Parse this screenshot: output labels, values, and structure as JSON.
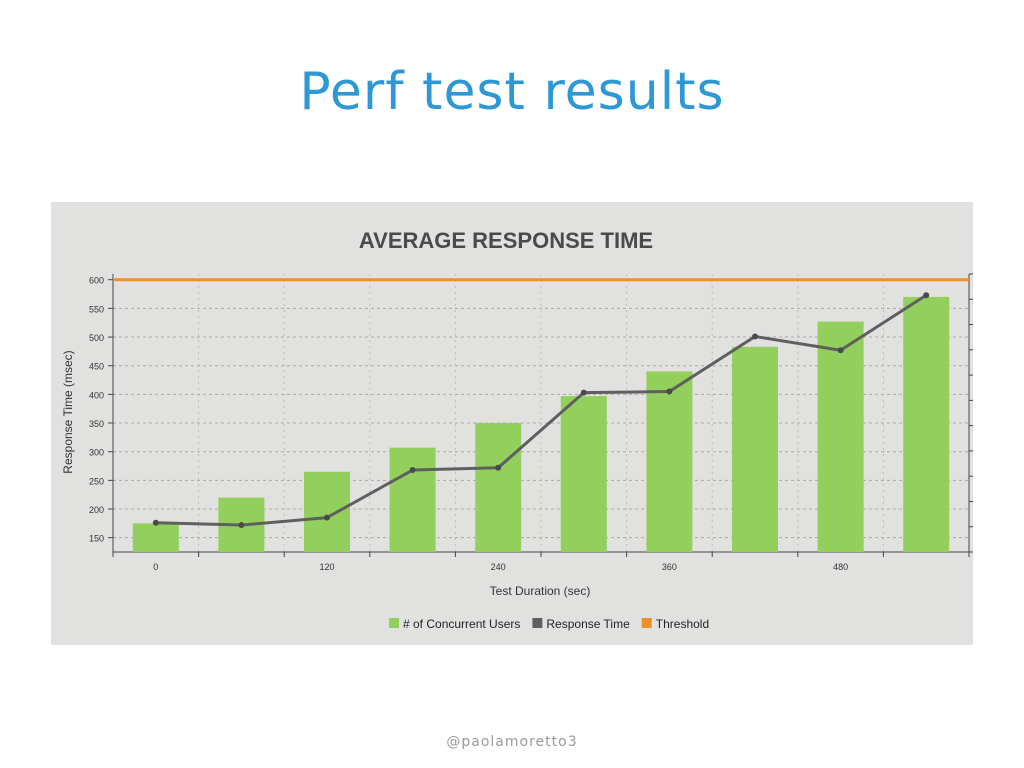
{
  "slide": {
    "title": "Perf test results",
    "footer": "@paolamoretto3"
  },
  "colors": {
    "title": "#2e98d6",
    "panel": "#e1e2e0",
    "bar": "#92cf5c",
    "line": "#5f5f5f",
    "threshold": "#ef8f2a"
  },
  "chart_data": {
    "type": "bar",
    "title": "AVERAGE RESPONSE TIME",
    "xlabel": "Test Duration (sec)",
    "ylabel": "Response Time (msec)",
    "ylim": [
      125,
      610
    ],
    "y_ticks": [
      150,
      200,
      250,
      300,
      350,
      400,
      450,
      500,
      550,
      600
    ],
    "x_tick_labels": [
      "0",
      "120",
      "240",
      "360",
      "480"
    ],
    "x_tick_positions": [
      0,
      2,
      4,
      6,
      8
    ],
    "grid": true,
    "legend_position": "bottom",
    "series": [
      {
        "name": "# of Concurrent Users",
        "kind": "bar",
        "color": "#92cf5c",
        "values": [
          175,
          220,
          265,
          307,
          350,
          397,
          440,
          483,
          527,
          570
        ]
      },
      {
        "name": "Response Time",
        "kind": "line",
        "color": "#5f5f5f",
        "values": [
          176,
          172,
          185,
          268,
          272,
          403,
          405,
          501,
          477,
          573
        ]
      },
      {
        "name": "Threshold",
        "kind": "hline",
        "color": "#ef8f2a",
        "value": 600
      }
    ]
  }
}
